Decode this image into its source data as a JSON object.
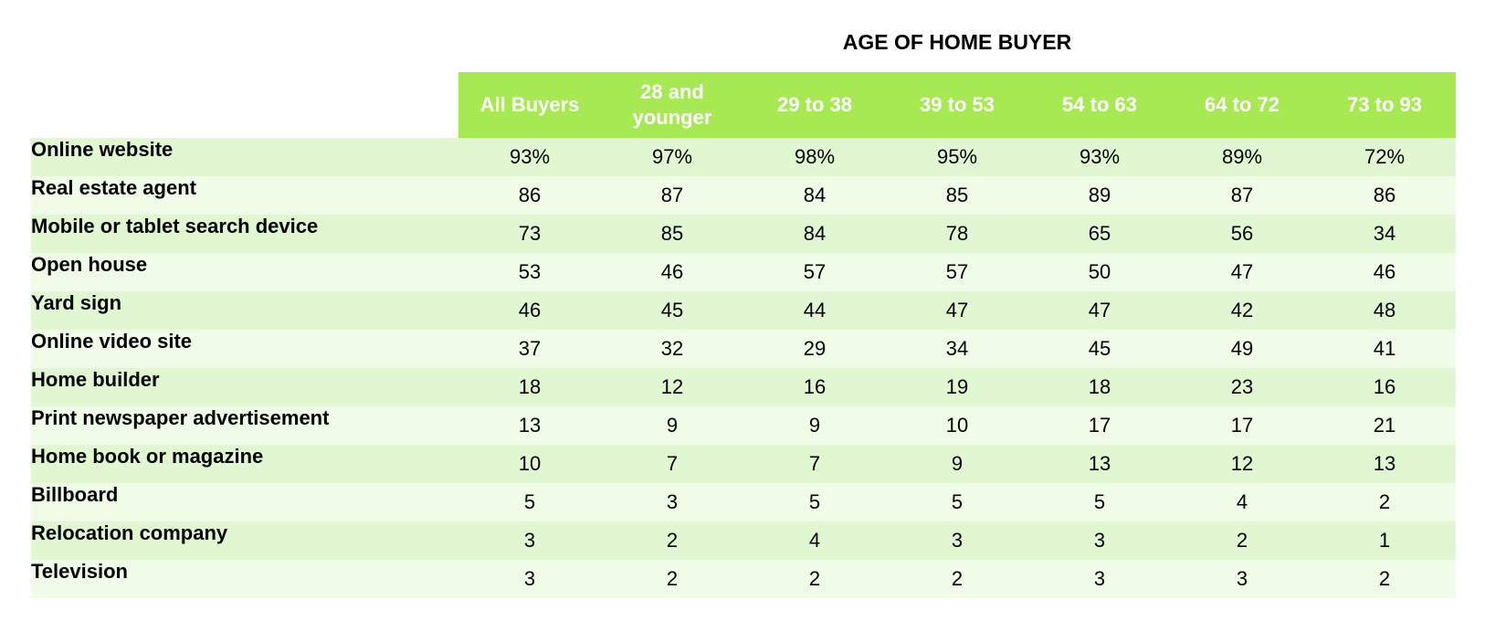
{
  "chart_data": {
    "type": "table",
    "title": "AGE OF HOME BUYER",
    "columns": [
      "All Buyers",
      "28 and younger",
      "29 to 38",
      "39 to 53",
      "54 to 63",
      "64 to 72",
      "73 to 93"
    ],
    "rows": [
      {
        "label": "Online website",
        "values": [
          "93%",
          "97%",
          "98%",
          "95%",
          "93%",
          "89%",
          "72%"
        ]
      },
      {
        "label": "Real estate agent",
        "values": [
          "86",
          "87",
          "84",
          "85",
          "89",
          "87",
          "86"
        ]
      },
      {
        "label": "Mobile or tablet search device",
        "values": [
          "73",
          "85",
          "84",
          "78",
          "65",
          "56",
          "34"
        ]
      },
      {
        "label": "Open house",
        "values": [
          "53",
          "46",
          "57",
          "57",
          "50",
          "47",
          "46"
        ]
      },
      {
        "label": "Yard sign",
        "values": [
          "46",
          "45",
          "44",
          "47",
          "47",
          "42",
          "48"
        ]
      },
      {
        "label": "Online video site",
        "values": [
          "37",
          "32",
          "29",
          "34",
          "45",
          "49",
          "41"
        ]
      },
      {
        "label": "Home builder",
        "values": [
          "18",
          "12",
          "16",
          "19",
          "18",
          "23",
          "16"
        ]
      },
      {
        "label": "Print newspaper advertisement",
        "values": [
          "13",
          "9",
          "9",
          "10",
          "17",
          "17",
          "21"
        ]
      },
      {
        "label": "Home book or magazine",
        "values": [
          "10",
          "7",
          "7",
          "9",
          "13",
          "12",
          "13"
        ]
      },
      {
        "label": "Billboard",
        "values": [
          "5",
          "3",
          "5",
          "5",
          "5",
          "4",
          "2"
        ]
      },
      {
        "label": "Relocation company",
        "values": [
          "3",
          "2",
          "4",
          "3",
          "3",
          "2",
          "1"
        ]
      },
      {
        "label": "Television",
        "values": [
          "3",
          "2",
          "2",
          "2",
          "3",
          "3",
          "2"
        ]
      }
    ]
  },
  "colors": {
    "header_bg": "#a6e953",
    "header_text": "#ffffff",
    "row_odd": "#e0f7d2",
    "row_even": "#f0fbe8"
  }
}
